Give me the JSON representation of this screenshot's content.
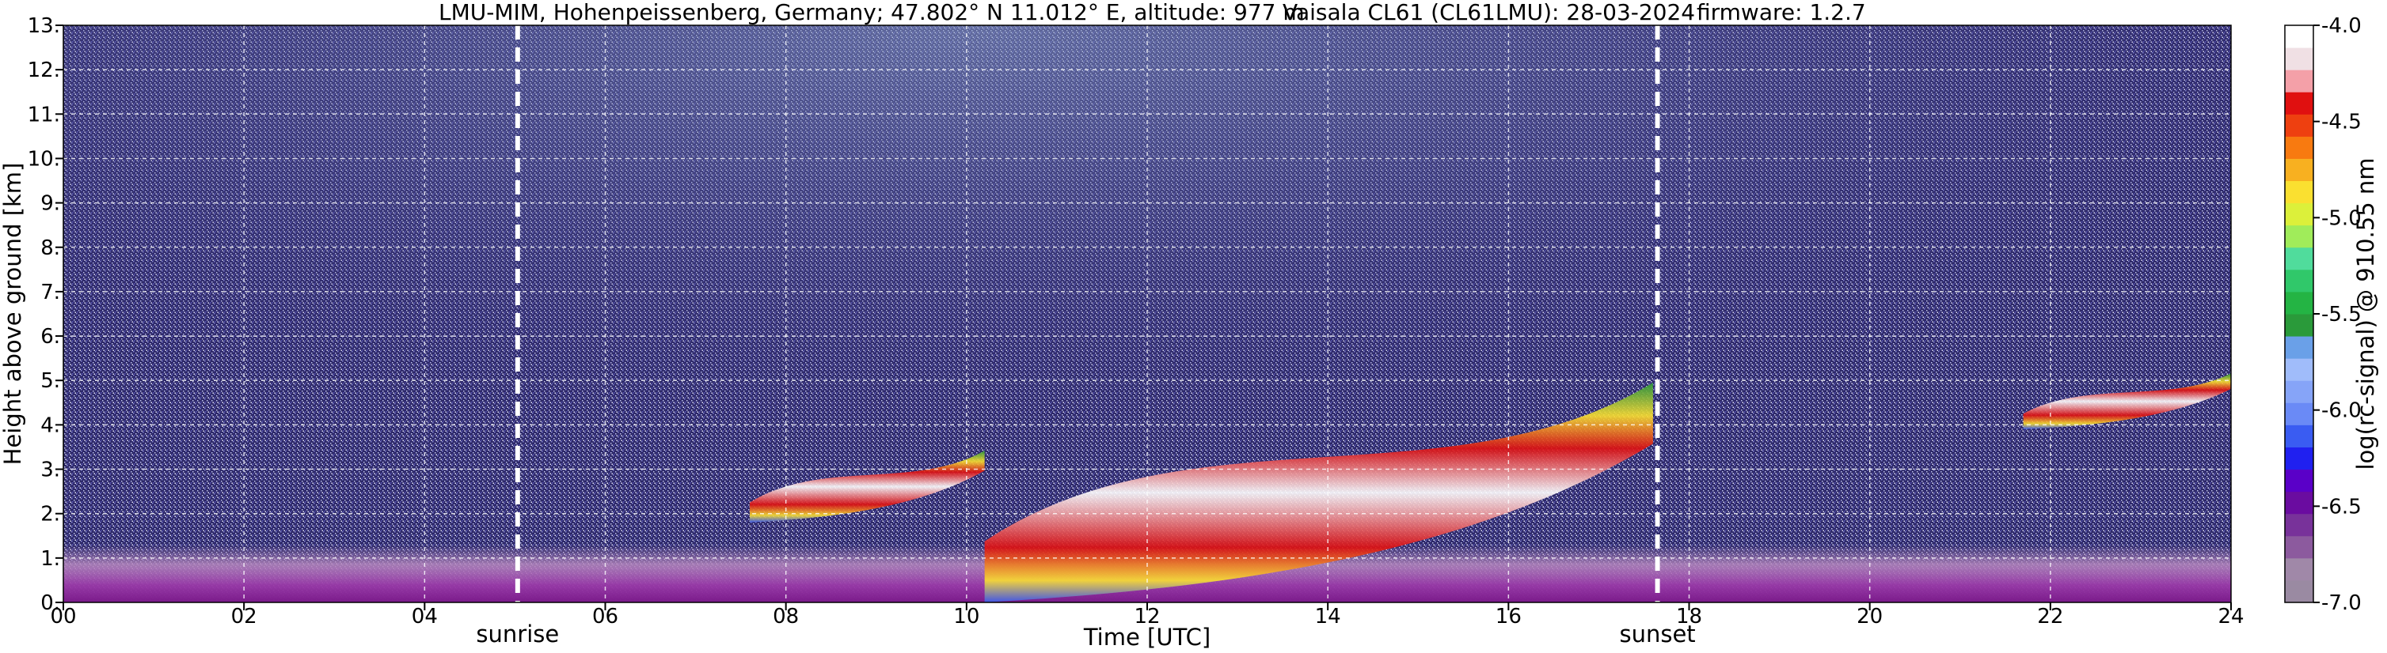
{
  "title": {
    "site": "LMU-MIM, Hohenpeissenberg, Germany; 47.802° N 11.012° E, altitude: 977 m",
    "instrument": "Vaisala CL61 (CL61LMU): 28-03-2024",
    "firmware": "firmware: 1.2.7"
  },
  "chart_data": {
    "type": "heatmap",
    "xlabel": "Time [UTC]",
    "ylabel": "Height above ground [km]",
    "xlim": [
      0,
      24
    ],
    "ylim": [
      0,
      13
    ],
    "x_ticks": [
      0,
      2,
      4,
      6,
      8,
      10,
      12,
      14,
      16,
      18,
      20,
      22,
      24
    ],
    "x_tick_labels": [
      "00",
      "02",
      "04",
      "06",
      "08",
      "10",
      "12",
      "14",
      "16",
      "18",
      "20",
      "22",
      "24"
    ],
    "y_ticks": [
      0,
      1,
      2,
      3,
      4,
      5,
      6,
      7,
      8,
      9,
      10,
      11,
      12,
      13
    ],
    "y_tick_labels": [
      "0.",
      "1.",
      "2.",
      "3.",
      "4.",
      "5.",
      "6.",
      "7.",
      "8.",
      "9.",
      "10.",
      "11.",
      "12.",
      "13."
    ],
    "grid": true,
    "annotations": [
      {
        "text": "sunrise",
        "x": 5.03,
        "style": "dashed-vertical-white"
      },
      {
        "text": "sunset",
        "x": 17.65,
        "style": "dashed-vertical-white"
      }
    ],
    "colorbar": {
      "label": "log(rc-signal) @ 910.55 nm",
      "range": [
        -7.0,
        -4.0
      ],
      "ticks": [
        -7.0,
        -6.5,
        -6.0,
        -5.5,
        -5.0,
        -4.5,
        -4.0
      ],
      "tick_labels": [
        "-7.0",
        "-6.5",
        "-6.0",
        "-5.5",
        "-5.0",
        "-4.5",
        "-4.0"
      ],
      "colors": [
        "#9a8aa2",
        "#a088a8",
        "#8c5a9e",
        "#78329a",
        "#6a0ca0",
        "#5a00c8",
        "#2020f0",
        "#3a5cf2",
        "#6a8af6",
        "#86a4f8",
        "#a0bcfa",
        "#6aa0e8",
        "#2a9a3a",
        "#24b444",
        "#30c86a",
        "#50dc9c",
        "#a0ec5a",
        "#dcf03a",
        "#fae030",
        "#f8b020",
        "#f87a10",
        "#ee4010",
        "#e01010",
        "#f4a0a8",
        "#f0e0e4",
        "#ffffff"
      ]
    },
    "features": [
      {
        "type": "boundary_layer_aerosol",
        "x_range": [
          0,
          24
        ],
        "height_range_km": [
          0,
          1.3
        ]
      },
      {
        "type": "cloud_layer",
        "x_range": [
          7.6,
          10.2
        ],
        "height_range_km": [
          1.8,
          3.6
        ]
      },
      {
        "type": "cloud_layer",
        "x_range": [
          10.2,
          17.6
        ],
        "height_range_km": [
          0,
          5.5
        ]
      },
      {
        "type": "cloud_layer",
        "x_range": [
          21.7,
          24
        ],
        "height_range_km": [
          3.9,
          5.3
        ]
      }
    ]
  }
}
